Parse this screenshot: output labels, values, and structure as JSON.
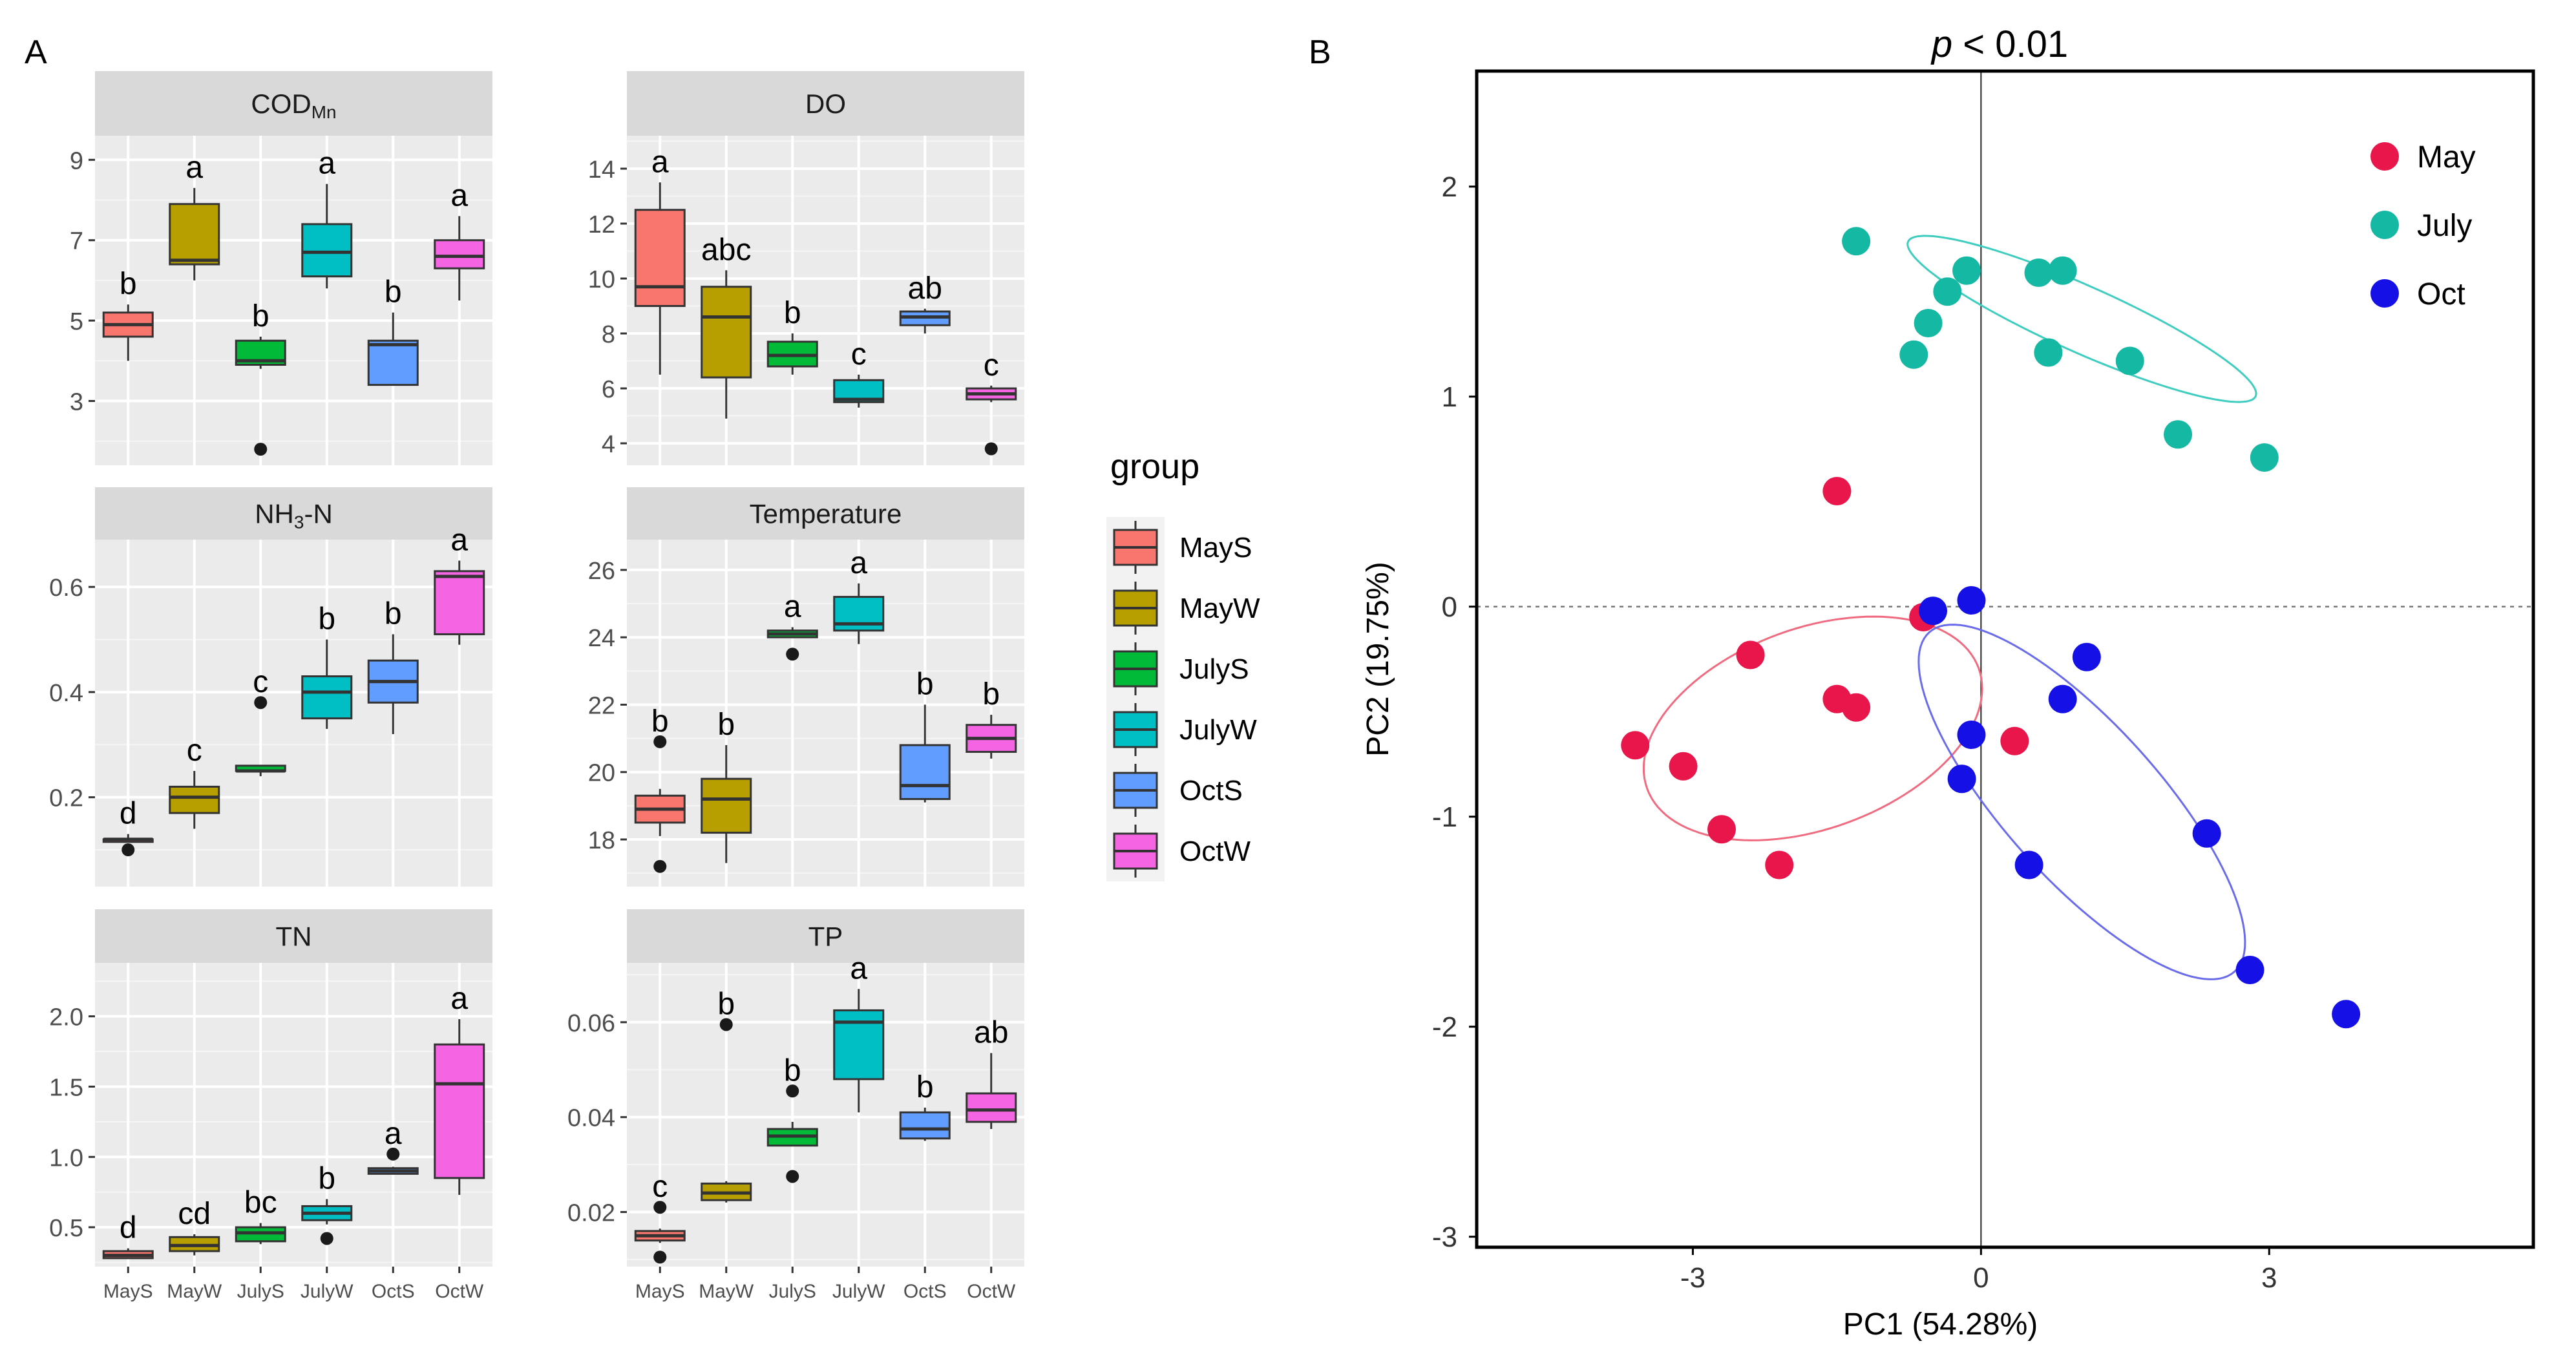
{
  "panel_labels": {
    "a": "A",
    "b": "B"
  },
  "chart_data": [
    {
      "type": "boxplot",
      "panel": "A",
      "legend": {
        "title": "group",
        "position": "right",
        "entries": [
          "MayS",
          "MayW",
          "JulyS",
          "JulyW",
          "OctS",
          "OctW"
        ],
        "colors": [
          "#F8766D",
          "#B79F00",
          "#00BA38",
          "#00BFC4",
          "#619CFF",
          "#F564E3"
        ]
      },
      "categories": [
        "MayS",
        "MayW",
        "JulyS",
        "JulyW",
        "OctS",
        "OctW"
      ],
      "facets": [
        {
          "title": "COD",
          "title_sub": "Mn",
          "ylim": [
            1.4,
            9.6
          ],
          "yticks": [
            3,
            5,
            7,
            9
          ],
          "ytick_labels": [
            "3",
            "5",
            "7",
            "9"
          ],
          "boxes": [
            {
              "lo": 4.0,
              "q1": 4.6,
              "med": 4.9,
              "q3": 5.2,
              "hi": 5.4,
              "out": []
            },
            {
              "lo": 6.0,
              "q1": 6.4,
              "med": 6.5,
              "q3": 7.9,
              "hi": 8.3,
              "out": []
            },
            {
              "lo": 3.8,
              "q1": 3.9,
              "med": 4.0,
              "q3": 4.5,
              "hi": 4.6,
              "out": [
                1.8
              ]
            },
            {
              "lo": 5.8,
              "q1": 6.1,
              "med": 6.7,
              "q3": 7.4,
              "hi": 8.4,
              "out": []
            },
            {
              "lo": 3.4,
              "q1": 3.4,
              "med": 4.4,
              "q3": 4.5,
              "hi": 5.2,
              "out": []
            },
            {
              "lo": 5.5,
              "q1": 6.3,
              "med": 6.6,
              "q3": 7.0,
              "hi": 7.6,
              "out": []
            }
          ],
          "letters": [
            "b",
            "a",
            "b",
            "a",
            "b",
            "a"
          ]
        },
        {
          "title": "DO",
          "ylim": [
            3.2,
            15.2
          ],
          "yticks": [
            4,
            6,
            8,
            10,
            12,
            14
          ],
          "ytick_labels": [
            "4",
            "6",
            "8",
            "10",
            "12",
            "14"
          ],
          "boxes": [
            {
              "lo": 6.5,
              "q1": 9.0,
              "med": 9.7,
              "q3": 12.5,
              "hi": 13.5,
              "out": []
            },
            {
              "lo": 4.9,
              "q1": 6.4,
              "med": 8.6,
              "q3": 9.7,
              "hi": 10.3,
              "out": []
            },
            {
              "lo": 6.5,
              "q1": 6.8,
              "med": 7.2,
              "q3": 7.7,
              "hi": 8.0,
              "out": []
            },
            {
              "lo": 5.3,
              "q1": 5.5,
              "med": 5.6,
              "q3": 6.3,
              "hi": 6.5,
              "out": []
            },
            {
              "lo": 8.0,
              "q1": 8.3,
              "med": 8.6,
              "q3": 8.8,
              "hi": 8.9,
              "out": []
            },
            {
              "lo": 5.5,
              "q1": 5.6,
              "med": 5.8,
              "q3": 6.0,
              "hi": 6.1,
              "out": [
                3.8
              ]
            }
          ],
          "letters": [
            "a",
            "abc",
            "b",
            "c",
            "ab",
            "c"
          ]
        },
        {
          "title": "NH",
          "title_sub": "3",
          "title_suffix": "-N",
          "ylim": [
            0.03,
            0.69
          ],
          "yticks": [
            0.2,
            0.4,
            0.6
          ],
          "ytick_labels": [
            "0.2",
            "0.4",
            "0.6"
          ],
          "boxes": [
            {
              "lo": 0.12,
              "q1": 0.12,
              "med": 0.12,
              "q3": 0.12,
              "hi": 0.13,
              "out": [
                0.1
              ]
            },
            {
              "lo": 0.14,
              "q1": 0.17,
              "med": 0.2,
              "q3": 0.22,
              "hi": 0.25,
              "out": []
            },
            {
              "lo": 0.24,
              "q1": 0.25,
              "med": 0.25,
              "q3": 0.26,
              "hi": 0.26,
              "out": [
                0.38
              ]
            },
            {
              "lo": 0.33,
              "q1": 0.35,
              "med": 0.4,
              "q3": 0.43,
              "hi": 0.5,
              "out": []
            },
            {
              "lo": 0.32,
              "q1": 0.38,
              "med": 0.42,
              "q3": 0.46,
              "hi": 0.51,
              "out": []
            },
            {
              "lo": 0.49,
              "q1": 0.51,
              "med": 0.62,
              "q3": 0.63,
              "hi": 0.65,
              "out": []
            }
          ],
          "letters": [
            "d",
            "c",
            "c",
            "b",
            "b",
            "a"
          ]
        },
        {
          "title": "Temperature",
          "ylim": [
            16.6,
            26.9
          ],
          "yticks": [
            18,
            20,
            22,
            24,
            26
          ],
          "ytick_labels": [
            "18",
            "20",
            "22",
            "24",
            "26"
          ],
          "boxes": [
            {
              "lo": 18.1,
              "q1": 18.5,
              "med": 18.9,
              "q3": 19.3,
              "hi": 19.5,
              "out": [
                17.2,
                20.9
              ]
            },
            {
              "lo": 17.3,
              "q1": 18.2,
              "med": 19.2,
              "q3": 19.8,
              "hi": 20.8,
              "out": []
            },
            {
              "lo": 24.0,
              "q1": 24.0,
              "med": 24.1,
              "q3": 24.2,
              "hi": 24.3,
              "out": [
                23.5
              ]
            },
            {
              "lo": 23.8,
              "q1": 24.2,
              "med": 24.4,
              "q3": 25.2,
              "hi": 25.6,
              "out": []
            },
            {
              "lo": 19.1,
              "q1": 19.2,
              "med": 19.6,
              "q3": 20.8,
              "hi": 22.0,
              "out": []
            },
            {
              "lo": 20.4,
              "q1": 20.6,
              "med": 21.0,
              "q3": 21.4,
              "hi": 21.7,
              "out": []
            }
          ],
          "letters": [
            "b",
            "b",
            "a",
            "a",
            "b",
            "b"
          ]
        },
        {
          "title": "TN",
          "ylim": [
            0.22,
            2.38
          ],
          "yticks": [
            0.5,
            1.0,
            1.5,
            2.0
          ],
          "ytick_labels": [
            "0.5",
            "1.0",
            "1.5",
            "2.0"
          ],
          "boxes": [
            {
              "lo": 0.28,
              "q1": 0.28,
              "med": 0.3,
              "q3": 0.33,
              "hi": 0.35,
              "out": []
            },
            {
              "lo": 0.3,
              "q1": 0.33,
              "med": 0.37,
              "q3": 0.43,
              "hi": 0.45,
              "out": []
            },
            {
              "lo": 0.38,
              "q1": 0.4,
              "med": 0.46,
              "q3": 0.5,
              "hi": 0.53,
              "out": []
            },
            {
              "lo": 0.52,
              "q1": 0.55,
              "med": 0.6,
              "q3": 0.65,
              "hi": 0.7,
              "out": [
                0.42
              ]
            },
            {
              "lo": 0.88,
              "q1": 0.88,
              "med": 0.9,
              "q3": 0.92,
              "hi": 0.93,
              "out": [
                1.02
              ]
            },
            {
              "lo": 0.73,
              "q1": 0.85,
              "med": 1.52,
              "q3": 1.8,
              "hi": 1.98,
              "out": []
            }
          ],
          "letters": [
            "d",
            "cd",
            "bc",
            "b",
            "a",
            "a"
          ]
        },
        {
          "title": "TP",
          "ylim": [
            0.0085,
            0.0725
          ],
          "yticks": [
            0.02,
            0.04,
            0.06
          ],
          "ytick_labels": [
            "0.02",
            "0.04",
            "0.06"
          ],
          "boxes": [
            {
              "lo": 0.0135,
              "q1": 0.014,
              "med": 0.015,
              "q3": 0.016,
              "hi": 0.0165,
              "out": [
                0.0105,
                0.021
              ]
            },
            {
              "lo": 0.022,
              "q1": 0.0225,
              "med": 0.024,
              "q3": 0.026,
              "hi": 0.0265,
              "out": [
                0.0595
              ]
            },
            {
              "lo": 0.034,
              "q1": 0.034,
              "med": 0.036,
              "q3": 0.0375,
              "hi": 0.039,
              "out": [
                0.0275,
                0.0455
              ]
            },
            {
              "lo": 0.041,
              "q1": 0.048,
              "med": 0.06,
              "q3": 0.0625,
              "hi": 0.067,
              "out": []
            },
            {
              "lo": 0.035,
              "q1": 0.0355,
              "med": 0.0375,
              "q3": 0.041,
              "hi": 0.042,
              "out": []
            },
            {
              "lo": 0.0375,
              "q1": 0.039,
              "med": 0.0415,
              "q3": 0.045,
              "hi": 0.0535,
              "out": []
            }
          ],
          "letters": [
            "c",
            "b",
            "b",
            "a",
            "b",
            "ab"
          ]
        }
      ]
    },
    {
      "type": "scatter",
      "panel": "B",
      "title": "p < 0.01",
      "title_italic": "p",
      "title_rest": " < 0.01",
      "xlabel": "PC1 (54.28%)",
      "ylabel": "PC2 (19.75%)",
      "xlim": [
        -5.25,
        5.75
      ],
      "ylim": [
        -3.05,
        2.55
      ],
      "xticks": [
        -3,
        0,
        3
      ],
      "xtick_labels": [
        "-3",
        "0",
        "3"
      ],
      "yticks": [
        -3,
        -2,
        -1,
        0,
        1,
        2
      ],
      "ytick_labels": [
        "-3",
        "-2",
        "-1",
        "0",
        "1",
        "2"
      ],
      "reference_lines": {
        "x": 0,
        "y": 0
      },
      "legend": {
        "position": "top-right"
      },
      "series": [
        {
          "name": "May",
          "color": "#E8164A",
          "x": [
            -1.5,
            -0.6,
            -2.4,
            -1.5,
            -1.3,
            -3.6,
            -3.1,
            -2.7,
            -2.1,
            0.35
          ],
          "y": [
            0.55,
            -0.05,
            -0.23,
            -0.44,
            -0.48,
            -0.66,
            -0.76,
            -1.06,
            -1.23,
            -0.64
          ],
          "ellipse": {
            "cx": -1.75,
            "cy": -0.58,
            "rx": 2.55,
            "ry": 1.45,
            "angle_deg": 20,
            "color": "#F06B80"
          }
        },
        {
          "name": "July",
          "color": "#15B8A3",
          "x": [
            -1.3,
            -0.7,
            -0.35,
            -0.15,
            0.6,
            0.85,
            -0.55,
            0.7,
            1.55,
            2.05,
            2.95
          ],
          "y": [
            1.74,
            1.2,
            1.5,
            1.6,
            1.59,
            1.6,
            1.35,
            1.21,
            1.17,
            0.82,
            0.71
          ],
          "ellipse": {
            "cx": 1.05,
            "cy": 1.37,
            "rx": 2.75,
            "ry": 0.48,
            "angle_deg": -24,
            "color": "#3FCDC0"
          }
        },
        {
          "name": "Oct",
          "color": "#1410E6",
          "x": [
            -0.5,
            -0.1,
            1.1,
            0.85,
            -0.1,
            -0.2,
            0.5,
            2.35,
            2.8,
            3.8
          ],
          "y": [
            -0.02,
            0.03,
            -0.24,
            -0.44,
            -0.61,
            -0.82,
            -1.23,
            -1.08,
            -1.73,
            -1.94
          ],
          "ellipse": {
            "cx": 1.05,
            "cy": -0.93,
            "rx": 3.3,
            "ry": 1.12,
            "angle_deg": -48,
            "color": "#6A6CEB"
          }
        }
      ]
    }
  ]
}
